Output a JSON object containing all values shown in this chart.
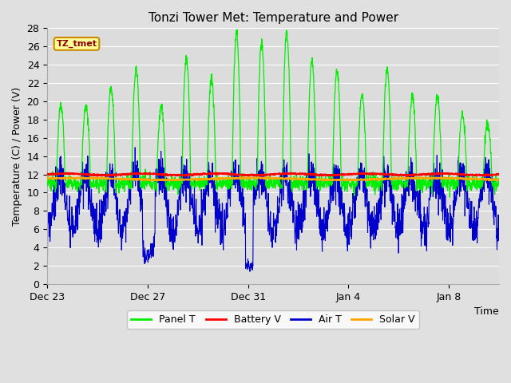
{
  "title": "Tonzi Tower Met: Temperature and Power",
  "xlabel": "Time",
  "ylabel": "Temperature (C) / Power (V)",
  "ylim": [
    0,
    28
  ],
  "yticks": [
    0,
    2,
    4,
    6,
    8,
    10,
    12,
    14,
    16,
    18,
    20,
    22,
    24,
    26,
    28
  ],
  "xtick_labels": [
    "Dec 23",
    "Dec 27",
    "Dec 31",
    "Jan 4",
    "Jan 8"
  ],
  "xtick_positions": [
    0,
    4,
    8,
    12,
    16
  ],
  "xlim": [
    0,
    18
  ],
  "fig_bg": "#e0e0e0",
  "plot_bg": "#dcdcdc",
  "grid_color": "#ffffff",
  "battery_v_mean": 12.0,
  "solar_v_mean": 11.5,
  "legend_items": [
    {
      "label": "Panel T",
      "color": "#00ee00"
    },
    {
      "label": "Battery V",
      "color": "#ff0000"
    },
    {
      "label": "Air T",
      "color": "#0000cc"
    },
    {
      "label": "Solar V",
      "color": "#ffa500"
    }
  ],
  "annotation_text": "TZ_tmet",
  "annotation_bg": "#ffff99",
  "annotation_border": "#cc8800",
  "panel_peak_mags": [
    8,
    8,
    10,
    12,
    8,
    13,
    11,
    16,
    15,
    16,
    13,
    12,
    9,
    12,
    9,
    9,
    7,
    6
  ]
}
